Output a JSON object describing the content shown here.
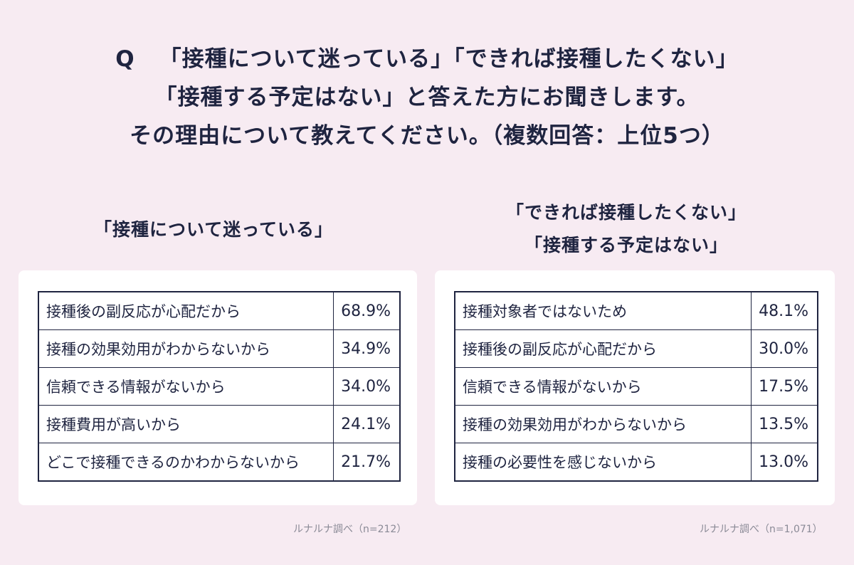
{
  "question": {
    "mark": "Q",
    "line1": "「接種について迷っている」「できれば接種したくない」",
    "line2": "「接種する予定はない」と答えた方にお聞きします。",
    "line3": "その理由について教えてください。（複数回答：上位5つ）"
  },
  "chart_data": [
    {
      "type": "table",
      "title_lines": [
        "「接種について迷っている」"
      ],
      "rows": [
        {
          "label": "接種後の副反応が心配だから",
          "value": "68.9%"
        },
        {
          "label": "接種の効果効用がわからないから",
          "value": "34.9%"
        },
        {
          "label": "信頼できる情報がないから",
          "value": "34.0%"
        },
        {
          "label": "接種費用が高いから",
          "value": "24.1%"
        },
        {
          "label": "どこで接種できるのかわからないから",
          "value": "21.7%"
        }
      ],
      "source": "ルナルナ調べ（n=212）"
    },
    {
      "type": "table",
      "title_lines": [
        "「できれば接種したくない」",
        "「接種する予定はない」"
      ],
      "rows": [
        {
          "label": "接種対象者ではないため",
          "value": "48.1%"
        },
        {
          "label": "接種後の副反応が心配だから",
          "value": "30.0%"
        },
        {
          "label": "信頼できる情報がないから",
          "value": "17.5%"
        },
        {
          "label": "接種の効果効用がわからないから",
          "value": "13.5%"
        },
        {
          "label": "接種の必要性を感じないから",
          "value": "13.0%"
        }
      ],
      "source": "ルナルナ調べ（n=1,071）"
    }
  ]
}
